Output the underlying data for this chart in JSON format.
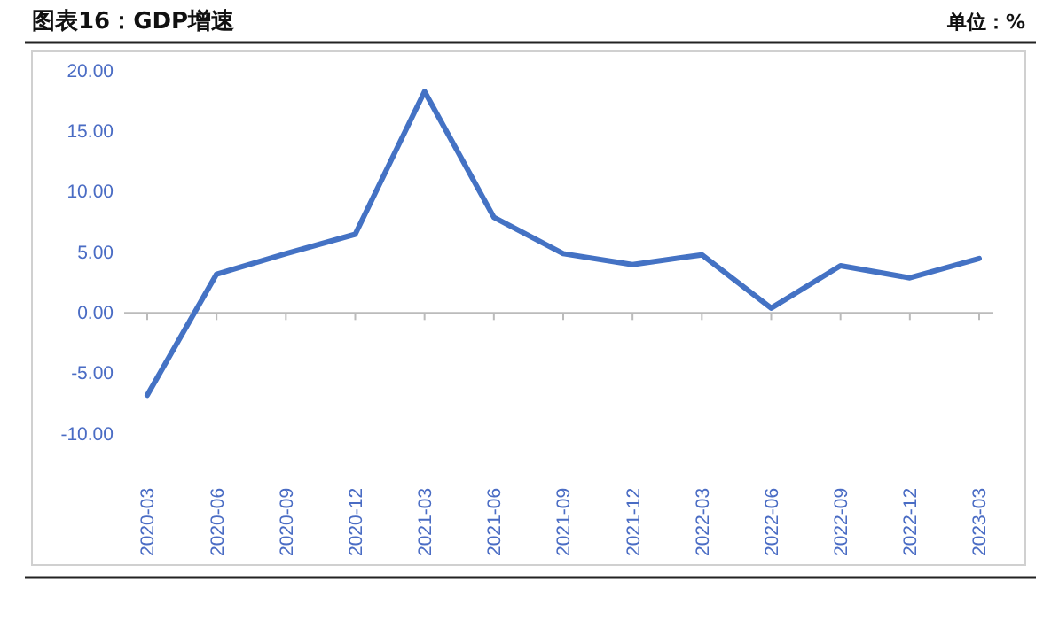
{
  "chart_data": {
    "type": "line",
    "title": "图表16：GDP增速",
    "subtitle": "单位：%",
    "categories": [
      "2020-03",
      "2020-06",
      "2020-09",
      "2020-12",
      "2021-03",
      "2021-06",
      "2021-09",
      "2021-12",
      "2022-03",
      "2022-06",
      "2022-09",
      "2022-12",
      "2023-03"
    ],
    "series": [
      {
        "color": "#4472c4",
        "values": [
          -6.8,
          3.2,
          4.9,
          6.5,
          18.3,
          7.9,
          4.9,
          4.0,
          4.8,
          0.4,
          3.9,
          2.9,
          4.5
        ]
      }
    ],
    "ylim": [
      -10,
      20
    ],
    "yticks": [
      {
        "value": -10,
        "label": "-10.00"
      },
      {
        "value": -5,
        "label": "-5.00"
      },
      {
        "value": 0,
        "label": "0.00"
      },
      {
        "value": 5,
        "label": "5.00"
      },
      {
        "value": 10,
        "label": "10.00"
      },
      {
        "value": 15,
        "label": "15.00"
      },
      {
        "value": 20,
        "label": "20.00"
      }
    ],
    "marker": "none",
    "line_style": "solid"
  }
}
